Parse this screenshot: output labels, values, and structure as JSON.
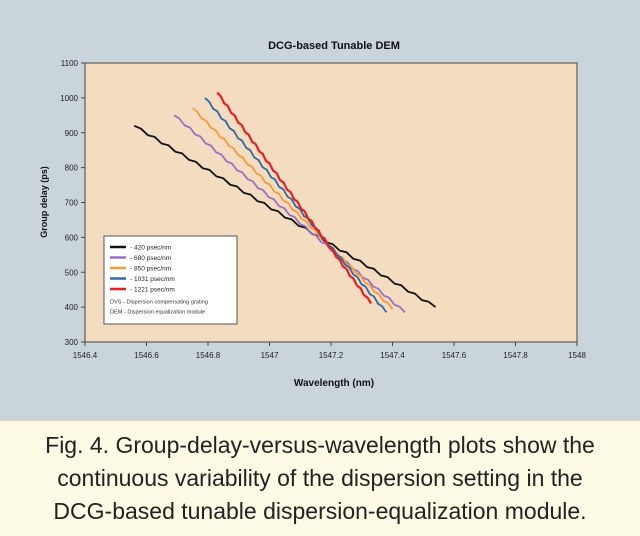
{
  "chart_data": {
    "type": "line",
    "title": "DCG-based Tunable DEM",
    "xlabel": "Wavelength (nm)",
    "ylabel": "Group delay (ps)",
    "xlim": [
      1546.4,
      1548.0
    ],
    "ylim": [
      300,
      1100
    ],
    "x_ticks": [
      1546.4,
      1546.6,
      1546.8,
      1547.0,
      1547.2,
      1547.4,
      1547.6,
      1547.8,
      1548.0
    ],
    "x_tick_labels": [
      "1546.4",
      "1546.6",
      "1546.8",
      "1547",
      "1547.2",
      "1547.4",
      "1547.6",
      "1547.8",
      "1548"
    ],
    "y_ticks": [
      300,
      400,
      500,
      600,
      700,
      800,
      900,
      1000,
      1100
    ],
    "y_tick_labels": [
      "300",
      "400",
      "500",
      "600",
      "700",
      "800",
      "900",
      "1000",
      "1100"
    ],
    "grid": false,
    "legend_position": "bottom-left",
    "background": "#f3dcc0",
    "series": [
      {
        "name": "- 420 psec/nm",
        "color": "#111111",
        "points": [
          [
            1546.56,
            920
          ],
          [
            1547.54,
            400
          ]
        ]
      },
      {
        "name": "- 680 psec/nm",
        "color": "#9a6fc8",
        "points": [
          [
            1546.69,
            950
          ],
          [
            1547.44,
            385
          ]
        ]
      },
      {
        "name": "- 850 psec/nm",
        "color": "#f39a3c",
        "points": [
          [
            1546.75,
            970
          ],
          [
            1547.4,
            395
          ]
        ]
      },
      {
        "name": "- 1031 psec/nm",
        "color": "#2c6aa8",
        "points": [
          [
            1546.79,
            1000
          ],
          [
            1547.38,
            385
          ]
        ]
      },
      {
        "name": "- 1221 psec/nm",
        "color": "#e81f1f",
        "points": [
          [
            1546.83,
            1015
          ],
          [
            1547.33,
            410
          ]
        ]
      }
    ],
    "legend_notes": [
      "DVS - Dispersion compensating grating",
      "DEM - Dispersion equalization module"
    ]
  },
  "caption": {
    "lines": [
      "Fig. 4. Group-delay-versus-wavelength plots show the",
      "continuous variability of the dispersion setting in the",
      "DCG-based tunable dispersion-equalization module."
    ]
  }
}
